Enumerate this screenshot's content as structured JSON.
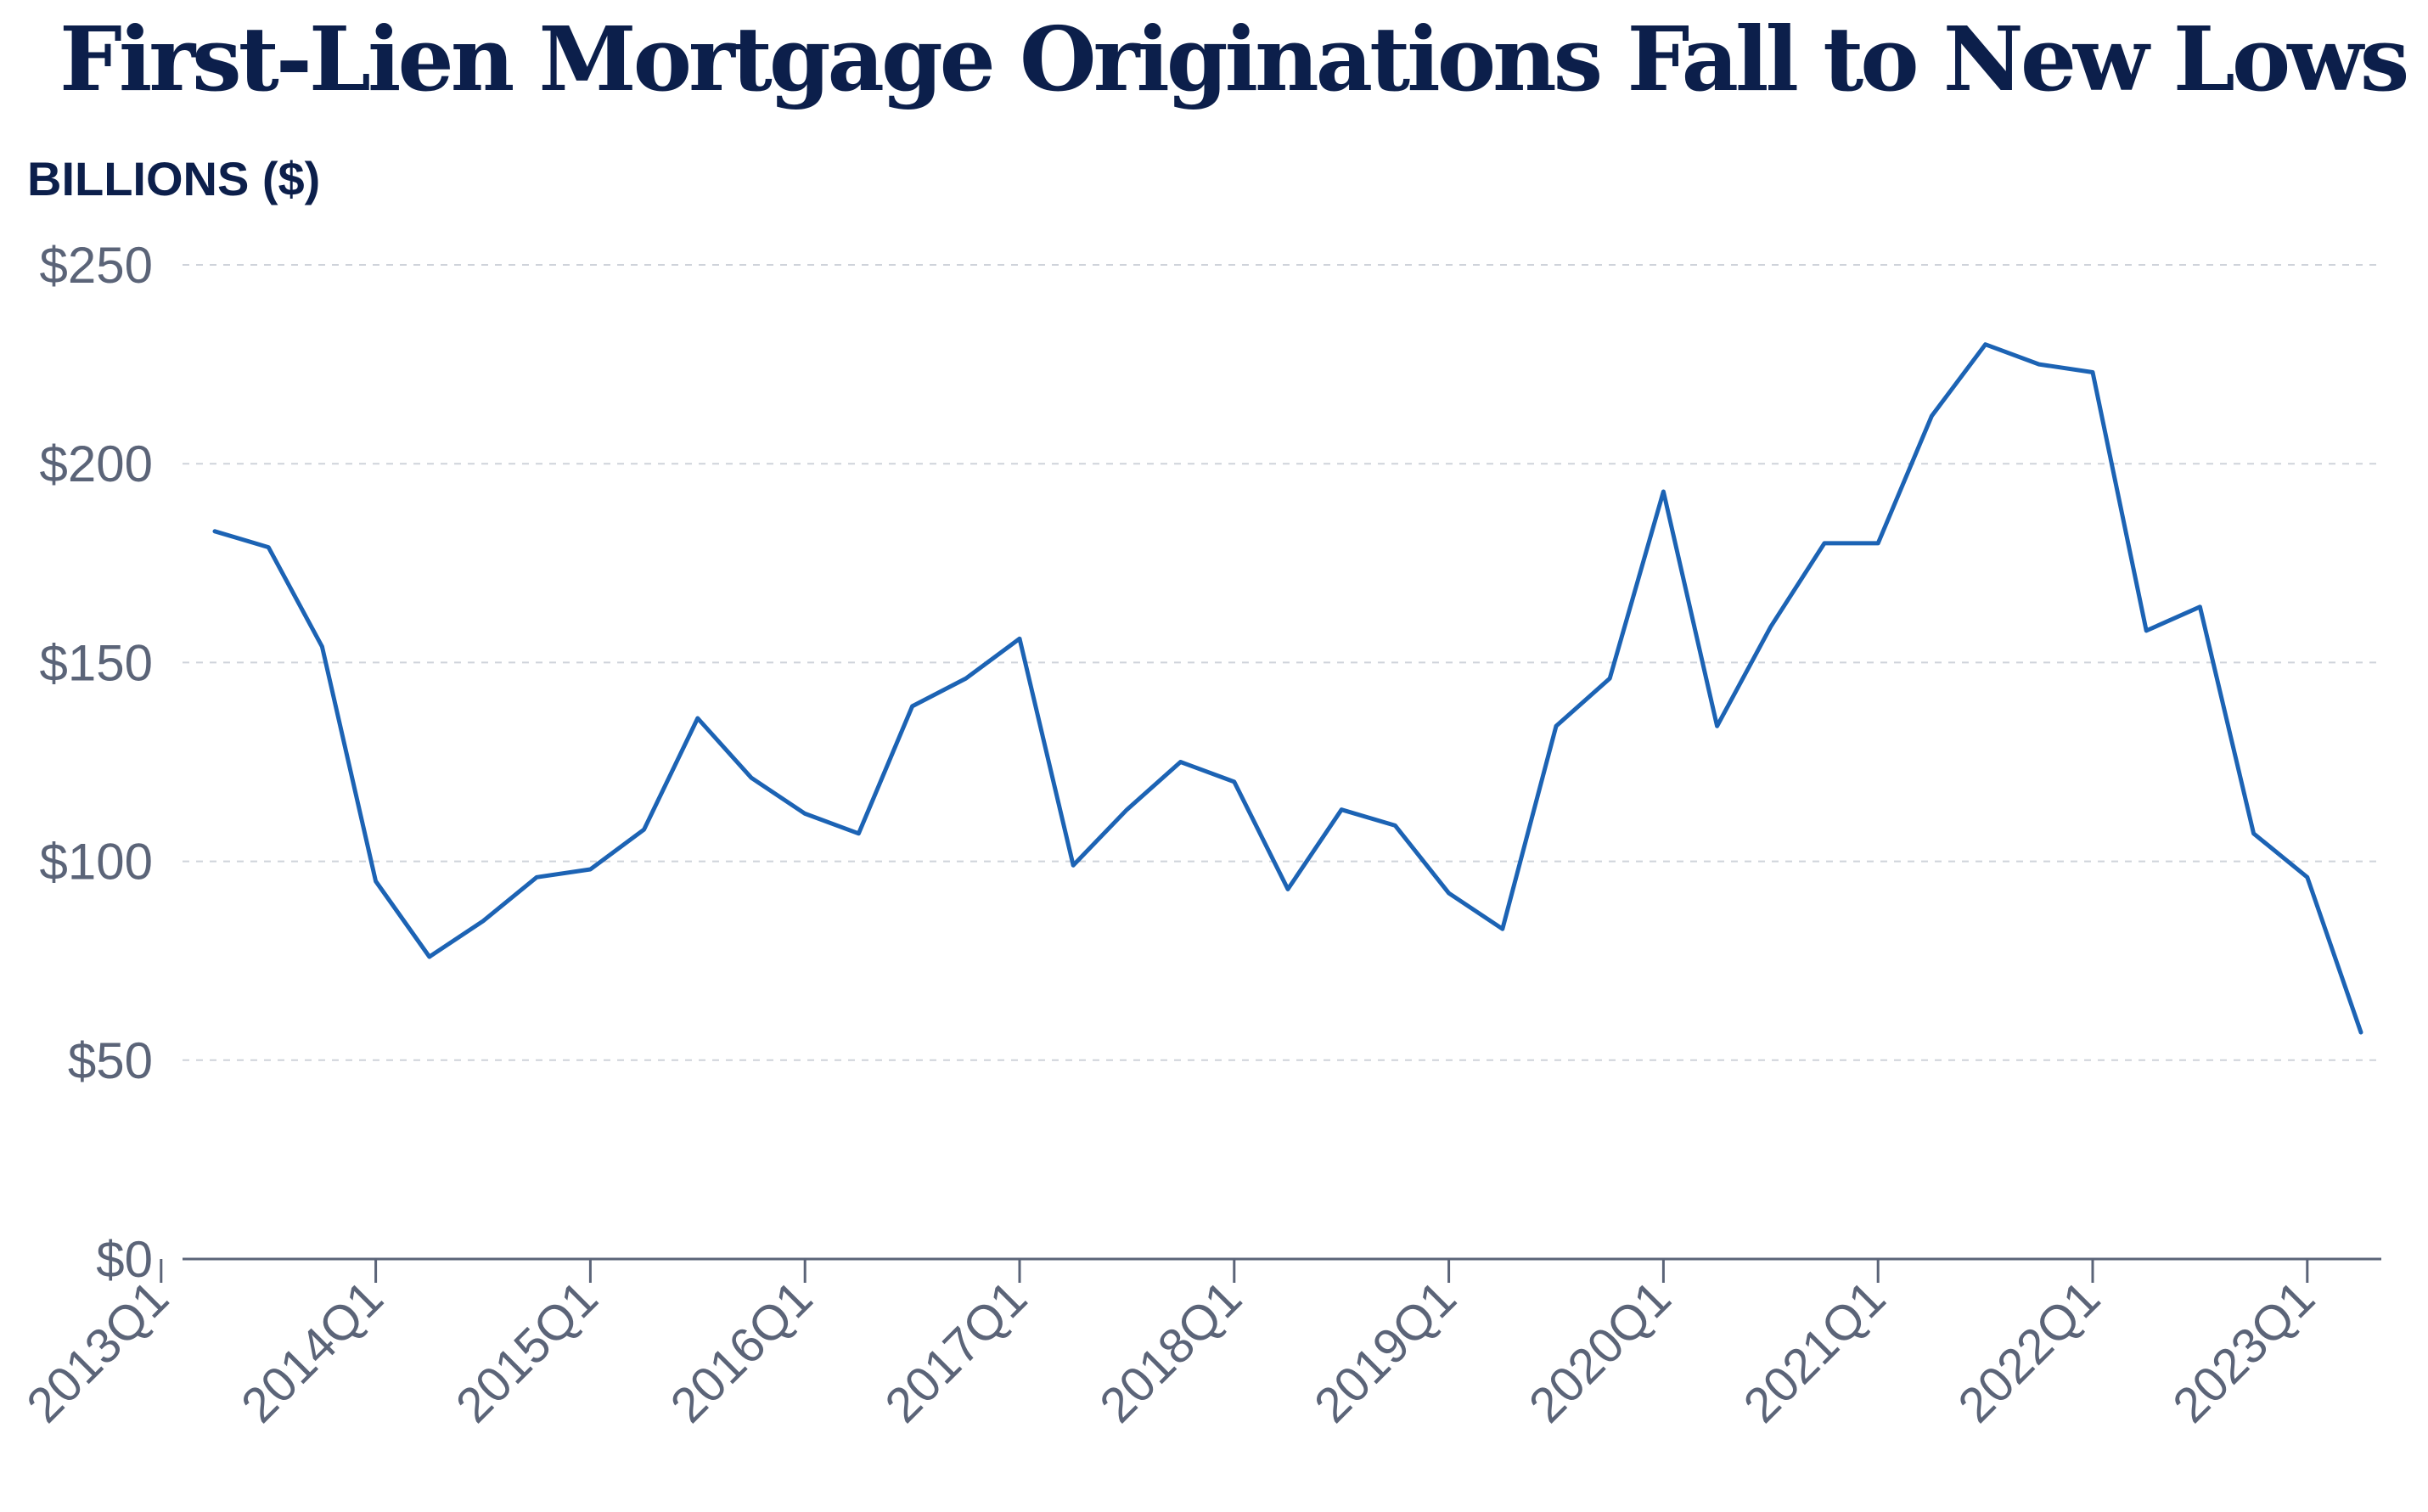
{
  "chart_data": {
    "type": "line",
    "title": "First-Lien Mortgage Originations Fall to New Lows",
    "ylabel": "BILLIONS ($)",
    "xlabel": "",
    "ylim": [
      0,
      250
    ],
    "yticks": [
      0,
      50,
      100,
      150,
      200,
      250
    ],
    "ytick_labels": [
      "$0",
      "$50",
      "$100",
      "$150",
      "$200",
      "$250"
    ],
    "xtick_labels": [
      "2013Q1",
      "2014Q1",
      "2015Q1",
      "2016Q1",
      "2017Q1",
      "2018Q1",
      "2019Q1",
      "2020Q1",
      "2021Q1",
      "2022Q1",
      "2023Q1"
    ],
    "grid": "horizontal dashed",
    "line_color": "#1c63b4",
    "x": [
      "2013Q2",
      "2013Q3",
      "2013Q4",
      "2014Q1",
      "2014Q2",
      "2014Q3",
      "2014Q4",
      "2015Q1",
      "2015Q2",
      "2015Q3",
      "2015Q4",
      "2016Q1",
      "2016Q2",
      "2016Q3",
      "2016Q4",
      "2017Q1",
      "2017Q2",
      "2017Q3",
      "2017Q4",
      "2018Q1",
      "2018Q2",
      "2018Q3",
      "2018Q4",
      "2019Q1",
      "2019Q2",
      "2019Q3",
      "2019Q4",
      "2020Q1",
      "2020Q2",
      "2020Q3",
      "2020Q4",
      "2021Q1",
      "2021Q2",
      "2021Q3",
      "2021Q4",
      "2022Q1",
      "2022Q2",
      "2022Q3",
      "2022Q4",
      "2023Q1",
      "2023Q2"
    ],
    "values": [
      183,
      179,
      154,
      95,
      76,
      85,
      96,
      98,
      108,
      136,
      121,
      112,
      107,
      139,
      146,
      156,
      99,
      113,
      125,
      120,
      93,
      113,
      109,
      92,
      83,
      134,
      146,
      193,
      134,
      159,
      180,
      180,
      212,
      230,
      225,
      223,
      158,
      164,
      107,
      96,
      57
    ]
  }
}
